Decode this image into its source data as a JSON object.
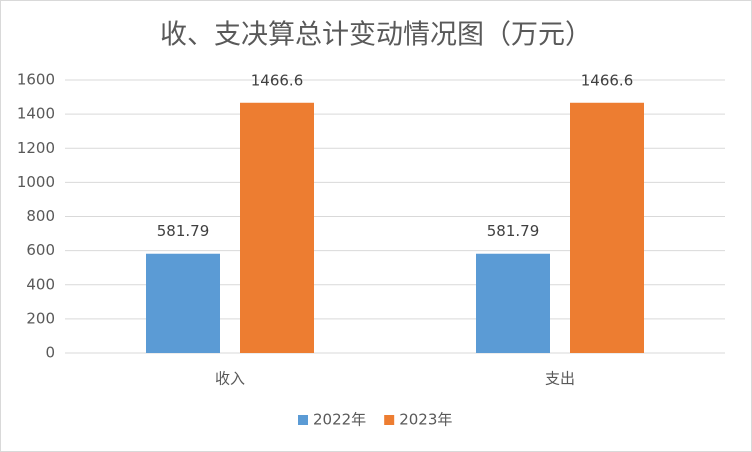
{
  "chart_data": {
    "type": "bar",
    "title": "收、支决算总计变动情况图（万元）",
    "categories": [
      "收入",
      "支出"
    ],
    "series": [
      {
        "name": "2022年",
        "color": "#5b9bd5",
        "values": [
          581.79,
          581.79
        ]
      },
      {
        "name": "2023年",
        "color": "#ed7d31",
        "values": [
          1466.6,
          1466.6
        ]
      }
    ],
    "ylim": [
      0,
      1600
    ],
    "yticks": [
      0,
      200,
      400,
      600,
      800,
      1000,
      1200,
      1400,
      1600
    ],
    "grid": true,
    "legend": "bottom"
  }
}
